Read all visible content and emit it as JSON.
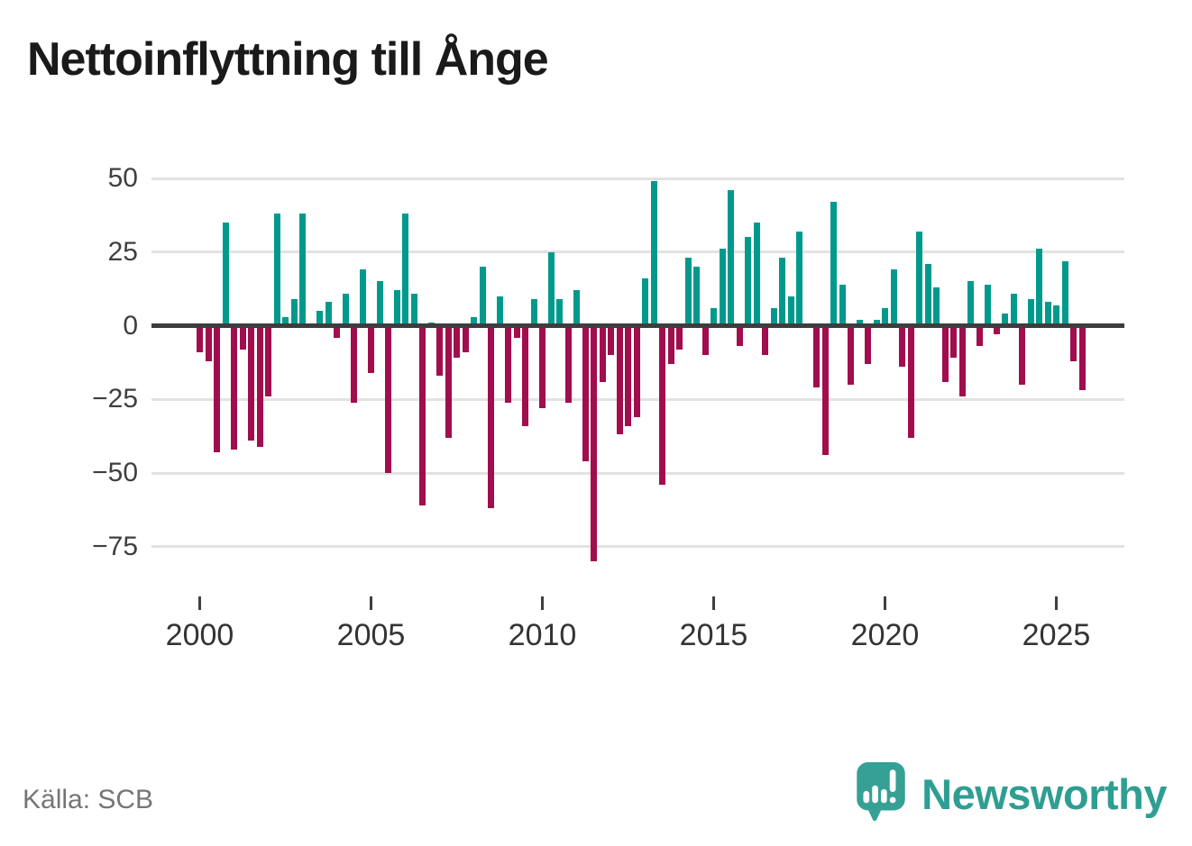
{
  "chart": {
    "title": "Nettoinflyttning till Ånge",
    "source": "Källa: SCB",
    "brand": "Newsworthy"
  },
  "colors": {
    "positive_bar": "#009a8d",
    "negative_bar": "#a10d4d",
    "zero_line": "#3d3d3d",
    "gridline": "#e2e2e2",
    "title_text": "#1a1a1a",
    "axis_text": "#3f3f3f",
    "source_text": "#757575",
    "brand_teal": "#36a095",
    "background": "#ffffff"
  },
  "chart_data": {
    "type": "bar",
    "title": "Nettoinflyttning till Ånge",
    "frequency": "quarterly",
    "start": "2000Q1",
    "end": "2025Q4",
    "y_ticks": [
      50,
      25,
      0,
      -25,
      -50,
      -75
    ],
    "ylim": [
      -85,
      55
    ],
    "x_tick_years": [
      2000,
      2005,
      2010,
      2015,
      2020,
      2025
    ],
    "grid": "horizontal",
    "legend": "none",
    "series_name": "Nettoinflyttning",
    "values_by_year": {
      "2000": [
        -9,
        -12,
        -43,
        35
      ],
      "2001": [
        -42,
        -8,
        -39,
        -41
      ],
      "2002": [
        -24,
        38,
        3,
        9
      ],
      "2003": [
        38,
        0,
        5,
        8
      ],
      "2004": [
        -4,
        11,
        -26,
        19
      ],
      "2005": [
        -16,
        15,
        -50,
        12
      ],
      "2006": [
        38,
        11,
        -61,
        1
      ],
      "2007": [
        -17,
        -38,
        -11,
        -9
      ],
      "2008": [
        3,
        20,
        -62,
        10
      ],
      "2009": [
        -26,
        -4,
        -34,
        9
      ],
      "2010": [
        -28,
        25,
        9,
        -26
      ],
      "2011": [
        12,
        -46,
        -80,
        -19
      ],
      "2012": [
        -10,
        -37,
        -34,
        -31
      ],
      "2013": [
        16,
        49,
        -54,
        -13
      ],
      "2014": [
        -8,
        23,
        20,
        -10
      ],
      "2015": [
        6,
        26,
        46,
        -7
      ],
      "2016": [
        30,
        35,
        -10,
        6
      ],
      "2017": [
        23,
        10,
        32,
        0
      ],
      "2018": [
        -21,
        -44,
        42,
        14
      ],
      "2019": [
        -20,
        2,
        -13,
        2
      ],
      "2020": [
        6,
        19,
        -14,
        -38
      ],
      "2021": [
        32,
        21,
        13,
        -19
      ],
      "2022": [
        -11,
        -24,
        15,
        -7
      ],
      "2023": [
        14,
        -3,
        4,
        11
      ],
      "2024": [
        -20,
        9,
        26,
        8
      ],
      "2025": [
        7,
        22,
        -12,
        -22
      ]
    }
  }
}
